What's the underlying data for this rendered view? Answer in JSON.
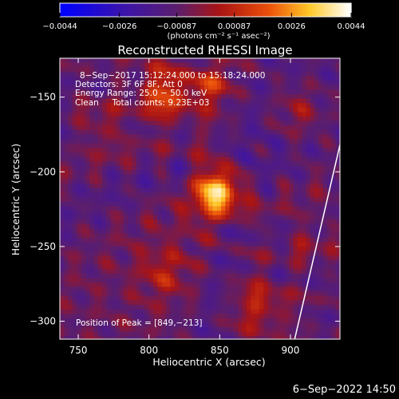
{
  "chart_data": {
    "type": "heatmap",
    "title": "Reconstructed RHESSI Image",
    "xlabel": "Heliocentric X (arcsec)",
    "ylabel": "Heliocentric Y (arcsec)",
    "xlim": [
      737,
      935
    ],
    "ylim": [
      -312,
      -124
    ],
    "x_ticks": [
      750,
      800,
      850,
      900
    ],
    "x_tick_labels": [
      "750",
      "800",
      "850",
      "900"
    ],
    "y_ticks": [
      -150,
      -200,
      -250,
      -300
    ],
    "y_tick_labels": [
      "−150",
      "−200",
      "−250",
      "−300"
    ],
    "colorbar": {
      "range": [
        -0.0044,
        0.0044
      ],
      "ticks": [
        -0.0044,
        -0.0026,
        -0.00087,
        0.00087,
        0.0026,
        0.0044
      ],
      "tick_labels": [
        "−0.0044",
        "−0.0026",
        "−0.00087",
        "0.00087",
        "0.0026",
        "0.0044"
      ],
      "unit_label": "(photons cm⁻² s⁻¹ asec⁻²)",
      "colormap": "rhessi: blue-purple-red-orange-yellow-white"
    },
    "annotations": [
      "8−Sep−2017 15:12:24.000 to 15:18:24.000",
      "Detectors: 3F 6F 8F, Att 0",
      "Energy Range: 25.0 − 50.0 keV",
      "Clean     Total counts: 9.23E+03",
      "Position of Peak = [849,−213]"
    ],
    "peak": {
      "x": 849,
      "y": -213,
      "value": 0.0044
    },
    "sources": [
      {
        "x": 849,
        "y": -213,
        "sigma_arcsec": 11,
        "amplitude": 0.0044
      },
      {
        "x": 812,
        "y": -148,
        "sigma_arcsec": 13,
        "amplitude": 0.0024
      },
      {
        "x": 842,
        "y": -142,
        "sigma_arcsec": 9,
        "amplitude": 0.0018
      },
      {
        "x": 906,
        "y": -160,
        "sigma_arcsec": 12,
        "amplitude": 0.0012
      },
      {
        "x": 880,
        "y": -290,
        "sigma_arcsec": 13,
        "amplitude": 0.0014
      },
      {
        "x": 810,
        "y": -268,
        "sigma_arcsec": 11,
        "amplitude": 0.0012
      },
      {
        "x": 768,
        "y": -170,
        "sigma_arcsec": 12,
        "amplitude": 0.0009
      },
      {
        "x": 912,
        "y": -245,
        "sigma_arcsec": 10,
        "amplitude": 0.0008
      }
    ],
    "background_level": -0.0009,
    "limb_line_points": [
      [
        903,
        -312
      ],
      [
        935,
        -182
      ]
    ]
  },
  "timestamp": "6−Sep−2022 14:50"
}
